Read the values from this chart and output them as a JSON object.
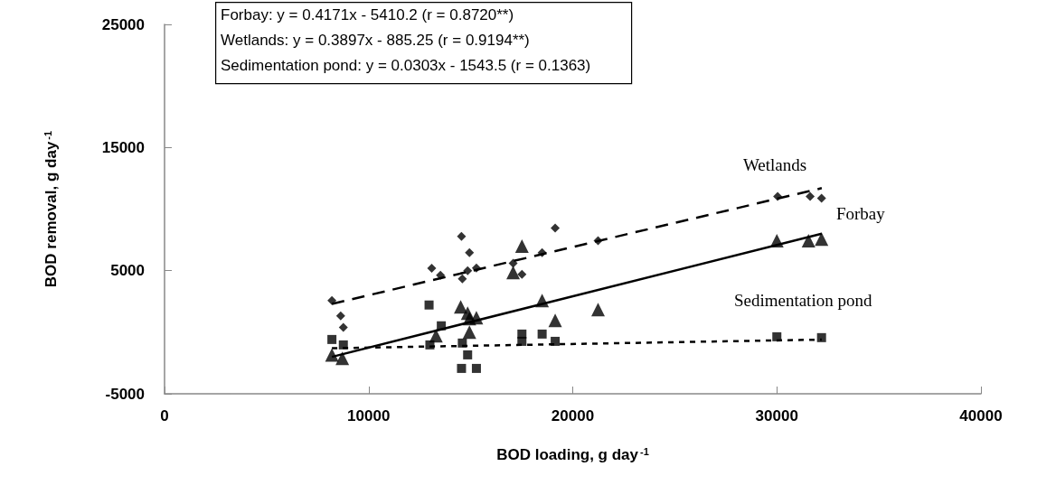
{
  "chart_data": {
    "type": "scatter",
    "xlabel": "BOD loading, g day$^{-1}$",
    "ylabel": "BOD removal, g day$^{-1}$",
    "annotations": [
      "Forbay: y = 0.4171x - 5410.2 (r = 0.8720**)",
      "Wetlands: y = 0.3897x - 885.25 (r = 0.9194**)",
      "Sedimentation pond: y = 0.0303x - 1543.5 (r = 0.1363)"
    ],
    "xlim": [
      0,
      40000
    ],
    "xticks": [
      0,
      10000,
      20000,
      30000,
      40000
    ],
    "ylim": [
      -5000,
      25000
    ],
    "yticks": [
      -5000,
      5000,
      15000,
      25000
    ],
    "grid": false,
    "legend": false,
    "series": [
      {
        "marker": "diamond",
        "color": "#000000",
        "x": [
          8200,
          8630,
          8760,
          13090,
          13520,
          14550,
          14940,
          14850,
          15280,
          14590,
          17080,
          17510,
          18500,
          19140,
          21240,
          30040,
          31630,
          32190
        ],
        "values": [
          2570,
          1320,
          400,
          5200,
          4630,
          7790,
          6470,
          5000,
          5220,
          4340,
          5590,
          4700,
          6470,
          8460,
          7430,
          11030,
          11030,
          10880
        ]
      },
      {
        "marker": "triangle",
        "color": "#000000",
        "x": [
          8200,
          8710,
          13130,
          13300,
          14510,
          14850,
          15280,
          14940,
          14940,
          17510,
          17080,
          18500,
          19140,
          21240,
          30000,
          31550,
          32190
        ],
        "values": [
          -1840,
          -2130,
          null,
          -290,
          2060,
          1540,
          1180,
          0,
          1100,
          6990,
          4850,
          2570,
          960,
          1840,
          7430,
          7430,
          7570
        ]
      },
      {
        "marker": "square",
        "color": "#000000",
        "x": [
          8200,
          8760,
          12960,
          13560,
          13000,
          14590,
          14850,
          14550,
          15280,
          17510,
          17510,
          18500,
          19140,
          30000,
          32190
        ],
        "values": [
          -590,
          -1030,
          2210,
          520,
          -1030,
          -880,
          -1840,
          -2940,
          -2940,
          -150,
          -740,
          -150,
          -740,
          -370,
          -440
        ]
      },
      {
        "type": "line",
        "name": "Wetlands",
        "line_style": "dashed",
        "color": "#000000",
        "x": [
          8200,
          32200
        ],
        "values": [
          2300,
          11700
        ]
      },
      {
        "type": "line",
        "name": "Forbay",
        "line_style": "solid",
        "color": "#000000",
        "x": [
          8200,
          32200
        ],
        "values": [
          -2000,
          8000
        ]
      },
      {
        "type": "line",
        "name": "Sedimentation pond",
        "line_style": "dotted",
        "color": "#000000",
        "x": [
          8200,
          32200
        ],
        "values": [
          -1300,
          -600
        ]
      }
    ]
  }
}
